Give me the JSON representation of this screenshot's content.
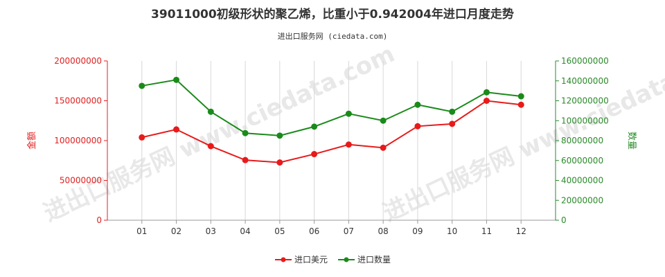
{
  "chart_data": {
    "type": "line",
    "title": "39011000初级形状的聚乙烯，比重小于0.942004年进口月度走势",
    "subtitle": "进出口服务网 (ciedata.com)",
    "watermark": "进出口服务网 www.ciedata.com",
    "categories": [
      "01",
      "02",
      "03",
      "04",
      "05",
      "06",
      "07",
      "08",
      "09",
      "10",
      "11",
      "12"
    ],
    "y_left": {
      "label": "金额",
      "range": [
        0,
        200000000
      ],
      "ticks": [
        "0",
        "50000000",
        "100000000",
        "150000000",
        "200000000"
      ],
      "color": "#e02020"
    },
    "y_right": {
      "label": "数量",
      "range": [
        0,
        160000000
      ],
      "ticks": [
        "0",
        "20000000",
        "40000000",
        "60000000",
        "80000000",
        "100000000",
        "120000000",
        "140000000",
        "160000000"
      ],
      "color": "#2a8a2a"
    },
    "series": [
      {
        "name": "进口美元",
        "axis": "left",
        "color": "#e81a1a",
        "values": [
          104000000,
          114000000,
          93000000,
          75500000,
          72500000,
          83000000,
          95000000,
          91000000,
          118000000,
          121000000,
          150000000,
          145000000
        ]
      },
      {
        "name": "进口数量",
        "axis": "right",
        "color": "#1a8a1a",
        "values": [
          135000000,
          141000000,
          109000000,
          87500000,
          85000000,
          94000000,
          107000000,
          100000000,
          116000000,
          109000000,
          128500000,
          124500000
        ]
      }
    ],
    "grid": "vertical",
    "legend_position": "bottom"
  }
}
